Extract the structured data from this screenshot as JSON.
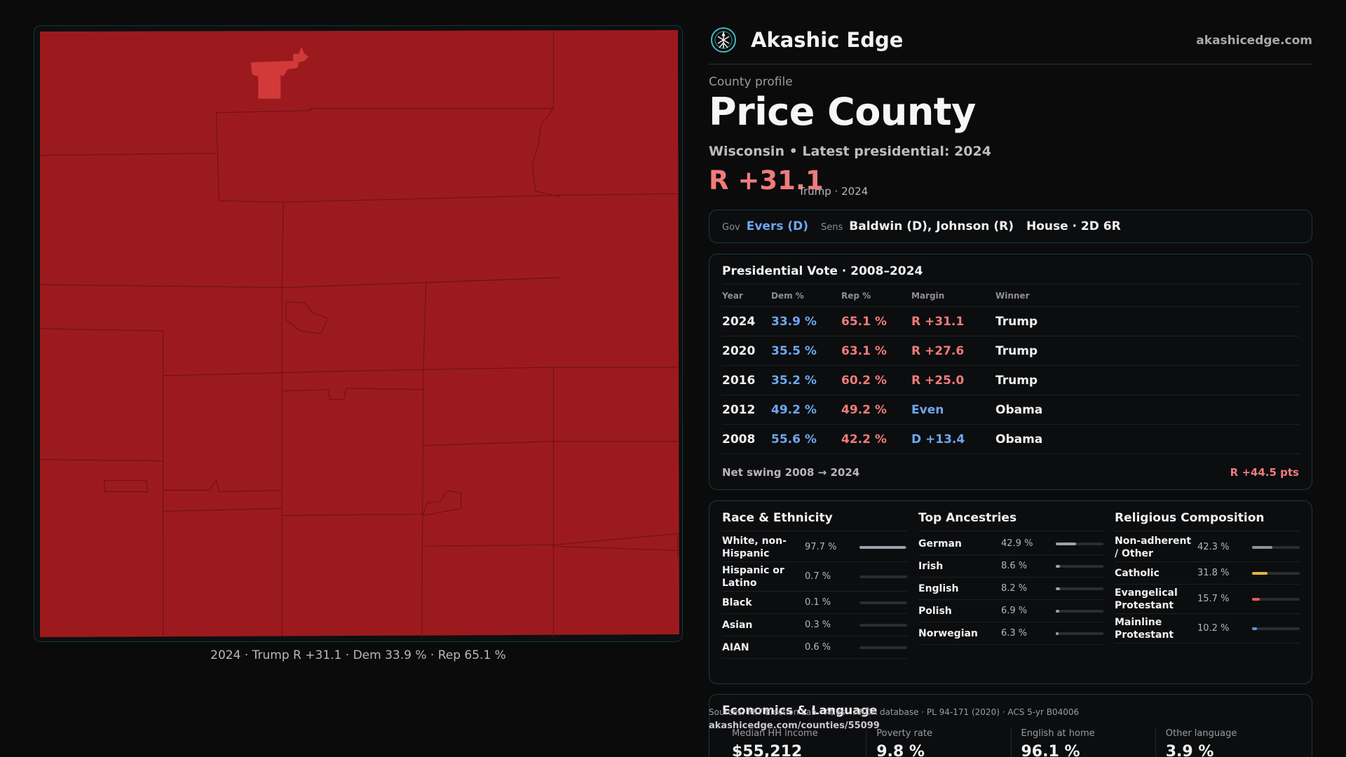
{
  "map": {
    "caption": "2024 · Trump R +31.1 · Dem 33.9 % · Rep 65.1 %",
    "fill_color": "#9c1a1e",
    "highlight_color": "#d23a3a"
  },
  "brand": {
    "name": "Akashic Edge",
    "url": "akashicedge.com",
    "logo_icon": "tree-of-life-icon"
  },
  "county": {
    "eyebrow": "County profile",
    "name": "Price County",
    "subtitle": "Wisconsin • Latest presidential: 2024",
    "margin": "R +31.1",
    "margin_note": "Trump · 2024"
  },
  "officials": {
    "gov_label": "Gov",
    "gov_value": "Evers (D)",
    "sens_label": "Sens",
    "sens_value": "Baldwin (D), Johnson (R)",
    "house_value": "House · 2D 6R"
  },
  "votes": {
    "title": "Presidential Vote · 2008–2024",
    "headers": [
      "Year",
      "Dem %",
      "Rep %",
      "Margin",
      "Winner"
    ],
    "rows": [
      {
        "year": "2024",
        "dem": "33.9 %",
        "rep": "65.1 %",
        "margin": "R +31.1",
        "party": "r",
        "winner": "Trump"
      },
      {
        "year": "2020",
        "dem": "35.5 %",
        "rep": "63.1 %",
        "margin": "R +27.6",
        "party": "r",
        "winner": "Trump"
      },
      {
        "year": "2016",
        "dem": "35.2 %",
        "rep": "60.2 %",
        "margin": "R +25.0",
        "party": "r",
        "winner": "Trump"
      },
      {
        "year": "2012",
        "dem": "49.2 %",
        "rep": "49.2 %",
        "margin": "Even",
        "party": "d",
        "winner": "Obama"
      },
      {
        "year": "2008",
        "dem": "55.6 %",
        "rep": "42.2 %",
        "margin": "D +13.4",
        "party": "d",
        "winner": "Obama"
      }
    ],
    "swing_label": "Net swing 2008 → 2024",
    "swing_value": "R +44.5 pts"
  },
  "demographics": [
    {
      "title": "Race & Ethnicity",
      "rows": [
        {
          "label": "White, non-Hispanic",
          "value": "97.7 %",
          "pct": 97.7,
          "color": "#9aa3ae"
        },
        {
          "label": "Hispanic or Latino",
          "value": "0.7 %",
          "pct": 0.7,
          "color": "#2a2d30"
        },
        {
          "label": "Black",
          "value": "0.1 %",
          "pct": 0.1,
          "color": "#2a2d30"
        },
        {
          "label": "Asian",
          "value": "0.3 %",
          "pct": 0.3,
          "color": "#2a2d30"
        },
        {
          "label": "AIAN",
          "value": "0.6 %",
          "pct": 0.6,
          "color": "#2a2d30"
        }
      ]
    },
    {
      "title": "Top Ancestries",
      "rows": [
        {
          "label": "German",
          "value": "42.9 %",
          "pct": 42.9,
          "color": "#9aa3ae"
        },
        {
          "label": "Irish",
          "value": "8.6 %",
          "pct": 8.6,
          "color": "#9aa3ae"
        },
        {
          "label": "English",
          "value": "8.2 %",
          "pct": 8.2,
          "color": "#9aa3ae"
        },
        {
          "label": "Polish",
          "value": "6.9 %",
          "pct": 6.9,
          "color": "#9aa3ae"
        },
        {
          "label": "Norwegian",
          "value": "6.3 %",
          "pct": 6.3,
          "color": "#9aa3ae"
        }
      ]
    },
    {
      "title": "Religious Composition",
      "rows": [
        {
          "label": "Non-adherent / Other",
          "value": "42.3 %",
          "pct": 42.3,
          "color": "#8c939c"
        },
        {
          "label": "Catholic",
          "value": "31.8 %",
          "pct": 31.8,
          "color": "#e3b541"
        },
        {
          "label": "Evangelical Protestant",
          "value": "15.7 %",
          "pct": 15.7,
          "color": "#e35a5a"
        },
        {
          "label": "Mainline Protestant",
          "value": "10.2 %",
          "pct": 10.2,
          "color": "#5a95e3"
        }
      ]
    }
  ],
  "economics": {
    "title": "Economics & Language",
    "stats": [
      {
        "label": "Median HH income",
        "value": "$55,212"
      },
      {
        "label": "Poverty rate",
        "value": "9.8 %"
      },
      {
        "label": "English at home",
        "value": "96.1 %"
      },
      {
        "label": "Other language",
        "value": "3.9 %"
      }
    ]
  },
  "footer": {
    "sources": "Sources: MIT Election Lab · Atlas · ARDA database · PL 94-171 (2020) · ACS 5-yr B04006",
    "url": "akashicedge.com/counties/55099"
  }
}
